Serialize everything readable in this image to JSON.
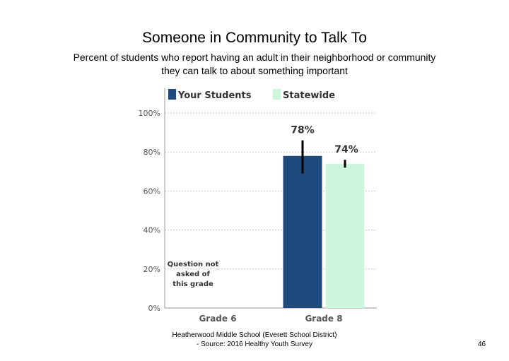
{
  "title": "Someone in Community to Talk To",
  "subtitle_line1": "Percent of students who report having an adult in their neighborhood or community",
  "subtitle_line2": "they can talk to about something important",
  "footer_line1": "Heatherwood Middle School (Everett School District)",
  "footer_line2": "- Source: 2016 Healthy Youth Survey",
  "page_number": "46",
  "colors": {
    "your_students": "#1f4a7e",
    "statewide": "#ccf7dc",
    "error_bar": "#000000"
  },
  "chart_data": {
    "type": "bar",
    "categories": [
      "Grade 6",
      "Grade 8"
    ],
    "ylim": [
      0,
      100
    ],
    "yticks": [
      "0%",
      "20%",
      "40%",
      "60%",
      "80%",
      "100%"
    ],
    "grid": true,
    "legend_position": "top",
    "series": [
      {
        "name": "Your Students",
        "values": [
          null,
          78
        ],
        "labels": [
          "",
          "78%"
        ],
        "error": [
          null,
          [
            69,
            86
          ]
        ]
      },
      {
        "name": "Statewide",
        "values": [
          null,
          74
        ],
        "labels": [
          "",
          "74%"
        ],
        "error": [
          null,
          [
            72,
            76
          ]
        ]
      }
    ],
    "annotations": [
      {
        "category": "Grade 6",
        "lines": [
          "Question not",
          "asked of",
          "this grade"
        ]
      }
    ]
  }
}
